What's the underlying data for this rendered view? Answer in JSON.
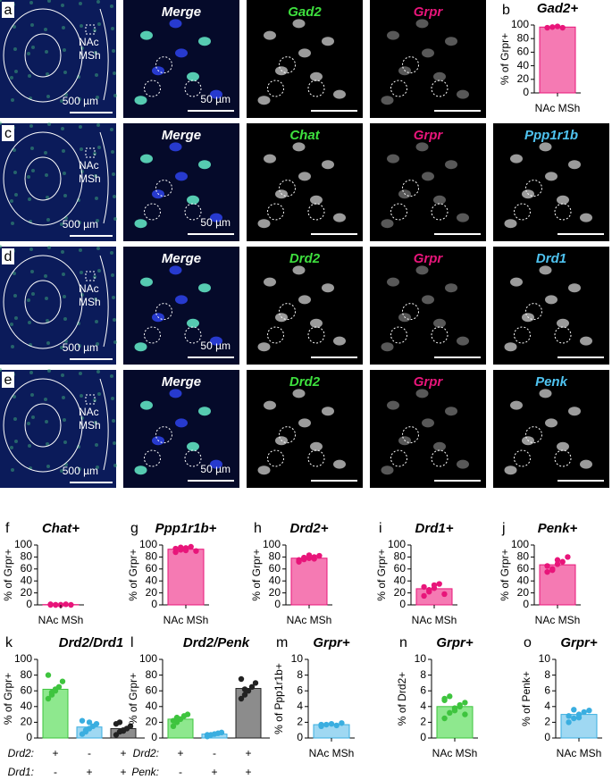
{
  "image_rows": [
    {
      "letter": "a",
      "overview_label": [
        "NAc",
        "MSh"
      ],
      "overview_scale": "500 µm",
      "merge_scale": "50 µm",
      "channels": [
        {
          "label": "Merge",
          "color": "#ffffff"
        },
        {
          "label": "Gad2",
          "color": "#3ee03e"
        },
        {
          "label": "Grpr",
          "color": "#e8157a"
        }
      ]
    },
    {
      "letter": "c",
      "overview_label": [
        "NAc",
        "MSh"
      ],
      "overview_scale": "500 µm",
      "merge_scale": "50 µm",
      "channels": [
        {
          "label": "Merge",
          "color": "#ffffff"
        },
        {
          "label": "Chat",
          "color": "#3ee03e"
        },
        {
          "label": "Grpr",
          "color": "#e8157a"
        },
        {
          "label": "Ppp1r1b",
          "color": "#4fc3f0"
        }
      ]
    },
    {
      "letter": "d",
      "overview_label": [
        "NAc",
        "MSh"
      ],
      "overview_scale": "500 µm",
      "merge_scale": "50 µm",
      "channels": [
        {
          "label": "Merge",
          "color": "#ffffff"
        },
        {
          "label": "Drd2",
          "color": "#3ee03e"
        },
        {
          "label": "Grpr",
          "color": "#e8157a"
        },
        {
          "label": "Drd1",
          "color": "#4fc3f0"
        }
      ]
    },
    {
      "letter": "e",
      "overview_label": [
        "NAc",
        "MSh"
      ],
      "overview_scale": "500 µm",
      "merge_scale": "50 µm",
      "channels": [
        {
          "label": "Merge",
          "color": "#ffffff"
        },
        {
          "label": "Drd2",
          "color": "#3ee03e"
        },
        {
          "label": "Grpr",
          "color": "#e8157a"
        },
        {
          "label": "Penk",
          "color": "#4fc3f0"
        }
      ]
    }
  ],
  "chart_data": [
    {
      "type": "bar",
      "letter": "b",
      "title": "Gad2+",
      "y_label": "% of Grpr+",
      "categories": [
        "NAc MSh"
      ],
      "values": [
        97
      ],
      "colors": [
        "#f57ab3"
      ],
      "point_colors": [
        "#e8157a"
      ],
      "points": [
        [
          96,
          97,
          98,
          96
        ]
      ],
      "ylim": [
        0,
        100
      ],
      "yticks": [
        0,
        20,
        40,
        60,
        80,
        100
      ]
    },
    {
      "type": "bar",
      "letter": "f",
      "title": "Chat+",
      "y_label": "% of Grpr+",
      "categories": [
        "NAc MSh"
      ],
      "values": [
        0.5
      ],
      "colors": [
        "#f57ab3"
      ],
      "point_colors": [
        "#e8157a"
      ],
      "points": [
        [
          0,
          0,
          0,
          1,
          0,
          1,
          0,
          0
        ]
      ],
      "ylim": [
        0,
        100
      ],
      "yticks": [
        0,
        20,
        40,
        60,
        80,
        100
      ]
    },
    {
      "type": "bar",
      "letter": "g",
      "title": "Ppp1r1b+",
      "y_label": "% of Grpr+",
      "categories": [
        "NAc MSh"
      ],
      "values": [
        93
      ],
      "colors": [
        "#f57ab3"
      ],
      "point_colors": [
        "#e8157a"
      ],
      "points": [
        [
          88,
          92,
          95,
          97,
          90,
          94,
          96,
          91
        ]
      ],
      "ylim": [
        0,
        100
      ],
      "yticks": [
        0,
        20,
        40,
        60,
        80,
        100
      ]
    },
    {
      "type": "bar",
      "letter": "h",
      "title": "Drd2+",
      "y_label": "% of Grpr+",
      "categories": [
        "NAc MSh"
      ],
      "values": [
        78
      ],
      "colors": [
        "#f57ab3"
      ],
      "point_colors": [
        "#e8157a"
      ],
      "points": [
        [
          72,
          76,
          78,
          80,
          82,
          75,
          79,
          83,
          77
        ]
      ],
      "ylim": [
        0,
        100
      ],
      "yticks": [
        0,
        20,
        40,
        60,
        80,
        100
      ]
    },
    {
      "type": "bar",
      "letter": "i",
      "title": "Drd1+",
      "y_label": "% of Grpr+",
      "categories": [
        "NAc MSh"
      ],
      "values": [
        27
      ],
      "colors": [
        "#f57ab3"
      ],
      "point_colors": [
        "#e8157a"
      ],
      "points": [
        [
          15,
          22,
          28,
          35,
          18,
          30,
          25,
          33
        ]
      ],
      "ylim": [
        0,
        100
      ],
      "yticks": [
        0,
        20,
        40,
        60,
        80,
        100
      ]
    },
    {
      "type": "bar",
      "letter": "j",
      "title": "Penk+",
      "y_label": "% of Grpr+",
      "categories": [
        "NAc MSh"
      ],
      "values": [
        67
      ],
      "colors": [
        "#f57ab3"
      ],
      "point_colors": [
        "#e8157a"
      ],
      "points": [
        [
          55,
          60,
          68,
          72,
          80,
          65,
          58,
          75
        ]
      ],
      "ylim": [
        0,
        100
      ],
      "yticks": [
        0,
        20,
        40,
        60,
        80,
        100
      ]
    },
    {
      "type": "grouped",
      "letter": "k",
      "title": "Drd2/Drd1",
      "y_label": "% of Grpr+",
      "row_labels": [
        "Drd2:",
        "Drd1:"
      ],
      "signs": [
        [
          "+",
          "-",
          "+"
        ],
        [
          "-",
          "+",
          "+"
        ]
      ],
      "values": [
        62,
        14,
        12
      ],
      "colors": [
        "#8ee88e",
        "#9fd8f2",
        "#8c8c8c"
      ],
      "point_colors": [
        "#3ec43e",
        "#3aaee0",
        "#222222"
      ],
      "points": [
        [
          50,
          55,
          60,
          65,
          72,
          80,
          58,
          62
        ],
        [
          5,
          8,
          12,
          15,
          18,
          22,
          10,
          20
        ],
        [
          4,
          8,
          10,
          12,
          15,
          18,
          20,
          9
        ]
      ],
      "ylim": [
        0,
        100
      ],
      "yticks": [
        0,
        20,
        40,
        60,
        80,
        100
      ]
    },
    {
      "type": "grouped",
      "letter": "l",
      "title": "Drd2/Penk",
      "y_label": "% of Grpr+",
      "row_labels": [
        "Drd2:",
        "Penk:"
      ],
      "signs": [
        [
          "+",
          "-",
          "+"
        ],
        [
          "-",
          "+",
          "+"
        ]
      ],
      "values": [
        24,
        5,
        63
      ],
      "colors": [
        "#8ee88e",
        "#9fd8f2",
        "#8c8c8c"
      ],
      "point_colors": [
        "#3ec43e",
        "#3aaee0",
        "#222222"
      ],
      "points": [
        [
          15,
          20,
          24,
          28,
          30,
          22,
          26
        ],
        [
          2,
          4,
          5,
          6,
          7,
          4
        ],
        [
          50,
          55,
          60,
          65,
          70,
          75,
          62
        ]
      ],
      "ylim": [
        0,
        100
      ],
      "yticks": [
        0,
        20,
        40,
        60,
        80,
        100
      ]
    },
    {
      "type": "bar",
      "letter": "m",
      "title": "Grpr+",
      "y_label": "% of Ppp1r1b+",
      "categories": [
        "NAc MSh"
      ],
      "values": [
        1.7
      ],
      "colors": [
        "#9fd8f2"
      ],
      "point_colors": [
        "#3aaee0"
      ],
      "points": [
        [
          1.5,
          1.7,
          1.8,
          1.6,
          1.9,
          1.7
        ]
      ],
      "ylim": [
        0,
        10
      ],
      "yticks": [
        0,
        2,
        4,
        6,
        8,
        10
      ]
    },
    {
      "type": "bar",
      "letter": "n",
      "title": "Grpr+",
      "y_label": "% of Drd2+",
      "categories": [
        "NAc MSh"
      ],
      "values": [
        4.0
      ],
      "colors": [
        "#8ee88e"
      ],
      "point_colors": [
        "#3ec43e"
      ],
      "points": [
        [
          2.5,
          3.2,
          3.8,
          4.0,
          4.5,
          5.0,
          5.3,
          3.5,
          4.2,
          3.0,
          4.8
        ]
      ],
      "ylim": [
        0,
        10
      ],
      "yticks": [
        0,
        2,
        4,
        6,
        8,
        10
      ]
    },
    {
      "type": "bar",
      "letter": "o",
      "title": "Grpr+",
      "y_label": "% of Penk+",
      "categories": [
        "NAc MSh"
      ],
      "values": [
        3.0
      ],
      "colors": [
        "#9fd8f2"
      ],
      "point_colors": [
        "#3aaee0"
      ],
      "points": [
        [
          2.0,
          2.5,
          3.0,
          3.3,
          3.5,
          2.8,
          3.6,
          2.6
        ]
      ],
      "ylim": [
        0,
        10
      ],
      "yticks": [
        0,
        2,
        4,
        6,
        8,
        10
      ]
    }
  ]
}
